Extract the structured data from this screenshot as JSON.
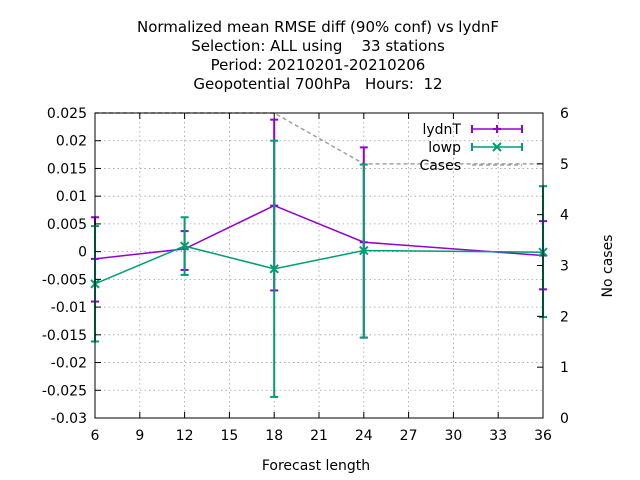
{
  "chart_data": {
    "type": "line",
    "title_lines": [
      "Normalized mean RMSE diff (90% conf) vs lydnF",
      "Selection: ALL using    33 stations",
      "Period: 20210201-20210206",
      "Geopotential 700hPa   Hours:  12"
    ],
    "xlabel": "Forecast length",
    "ylabel": "",
    "y2label": "No cases",
    "xlim": [
      6,
      36
    ],
    "ylim": [
      -0.03,
      0.025
    ],
    "y2lim": [
      0,
      6
    ],
    "xticks": [
      "6",
      "9",
      "12",
      "15",
      "18",
      "21",
      "24",
      "27",
      "30",
      "33",
      "36"
    ],
    "yticks": [
      "0.025",
      "0.02",
      "0.015",
      "0.01",
      "0.005",
      "0",
      "-0.005",
      "-0.01",
      "-0.015",
      "-0.02",
      "-0.025",
      "-0.03"
    ],
    "y2ticks": [
      "6",
      "5",
      "4",
      "3",
      "2",
      "1",
      "0"
    ],
    "grid": true,
    "legend_position": "top-right",
    "series": [
      {
        "name": "lydnT",
        "color": "#9400d3",
        "marker": "plus",
        "x": [
          6,
          12,
          18,
          24,
          36
        ],
        "y": [
          -0.0013,
          0.0005,
          0.0083,
          0.0017,
          -0.0007
        ],
        "err_low": [
          -0.009,
          -0.0033,
          -0.007,
          -0.0155,
          -0.0068
        ],
        "err_high": [
          0.0062,
          0.0037,
          0.0238,
          0.0188,
          0.0055
        ]
      },
      {
        "name": "lowp",
        "color": "#009e73",
        "marker": "x",
        "x": [
          6,
          12,
          18,
          24,
          36
        ],
        "y": [
          -0.0058,
          0.001,
          -0.0031,
          0.0002,
          -0.0001
        ],
        "err_low": [
          -0.0162,
          -0.0042,
          -0.0262,
          -0.0155,
          -0.0118
        ],
        "err_high": [
          0.0046,
          0.0062,
          0.02,
          0.0157,
          0.0118
        ]
      },
      {
        "name": "Cases",
        "color": "#a0a0a0",
        "axis": "y2",
        "style": "dashed",
        "x": [
          6,
          12,
          18,
          24,
          36
        ],
        "y": [
          6,
          6,
          6,
          5,
          5
        ]
      }
    ]
  }
}
